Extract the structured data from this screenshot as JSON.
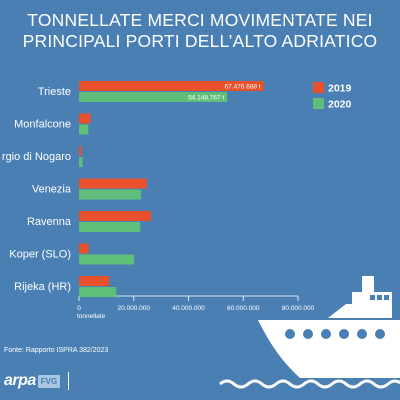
{
  "title_lines": [
    "TONNELLATE MERCI MOVIMENTATE NEI",
    "PRINCIPALI PORTI DELL’ALTO ADRIATICO"
  ],
  "source": "Fonte: Rapporto ISPRA 382/2023",
  "logo": {
    "arpa": "arpa",
    "fvg": "FVG"
  },
  "colors": {
    "background": "#4a7fb4",
    "series_2019": "#e8512c",
    "series_2020": "#5fbf7a"
  },
  "chart_data": {
    "type": "bar",
    "orientation": "horizontal",
    "categories": [
      "Trieste",
      "Monfalcone",
      "Porto Nogaro",
      "Venezia",
      "Ravenna",
      "Koper (SLO)",
      "Rijeka (HR)"
    ],
    "category_labels": [
      "Trieste",
      "Monfalcone",
      "rgio di Nogaro",
      "Venezia",
      "Ravenna",
      "Koper (SLO)",
      "Rijeka (HR)"
    ],
    "series": [
      {
        "name": "2019",
        "color": "#e8512c",
        "values": [
          67476688,
          4200000,
          900000,
          24800000,
          26300000,
          3500000,
          11000000
        ],
        "labels": [
          "67.476.688 t",
          "",
          "",
          "",
          "",
          "",
          ""
        ]
      },
      {
        "name": "2020",
        "color": "#5fbf7a",
        "values": [
          54148767,
          3400000,
          1300000,
          22700000,
          22400000,
          20100000,
          13600000
        ],
        "labels": [
          "54.148.767 t",
          "",
          "",
          "",
          "",
          "",
          ""
        ]
      }
    ],
    "xticks": [
      0,
      20000000,
      40000000,
      60000000,
      80000000
    ],
    "xtick_labels": [
      "0",
      "20.000.000",
      "40.000.000",
      "60.000.000",
      "80.000.000"
    ],
    "xlabel": "tonnellate",
    "xlim": [
      0,
      80000000
    ],
    "legend": [
      "2019",
      "2020"
    ],
    "legend_position": "top-right"
  }
}
